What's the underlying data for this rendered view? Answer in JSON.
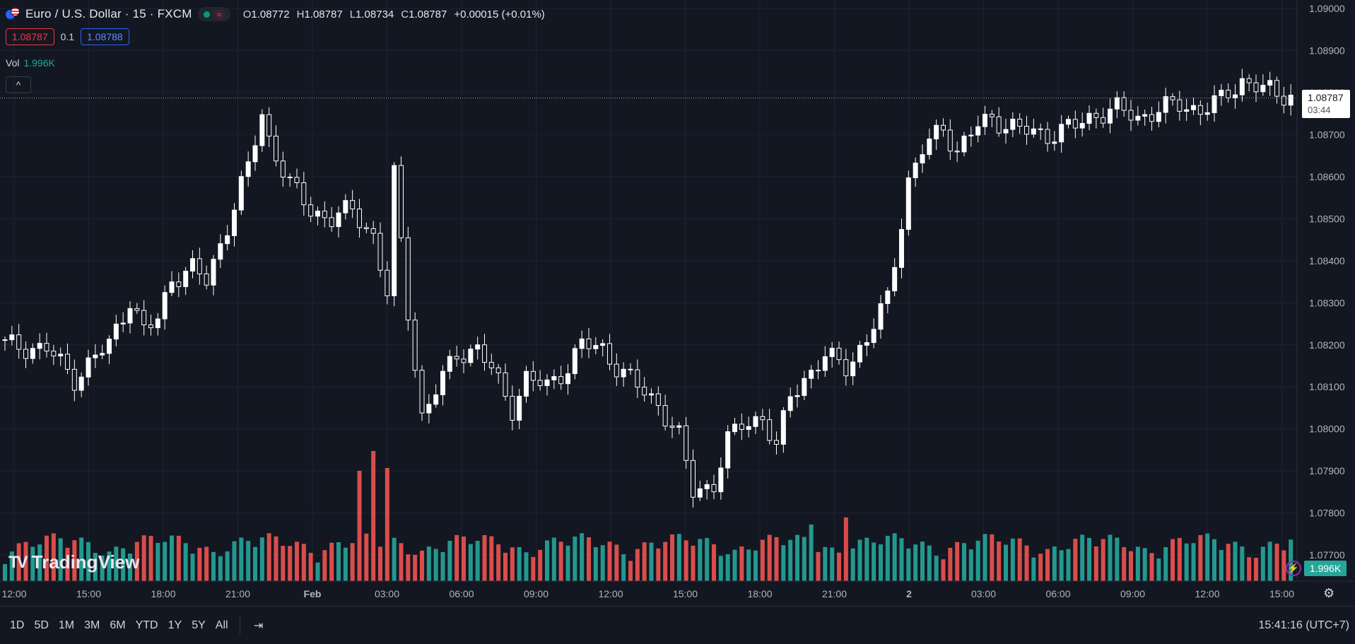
{
  "header": {
    "symbol": "Euro / U.S. Dollar · 15 · FXCM",
    "ohlc": {
      "o_label": "O",
      "o": "1.08772",
      "h_label": "H",
      "h": "1.08787",
      "l_label": "L",
      "l": "1.08734",
      "c_label": "C",
      "c": "1.08787",
      "change": "+0.00015 (+0.01%)"
    },
    "sell_price": "1.08787",
    "spread": "0.1",
    "buy_price": "1.08788",
    "vol_label": "Vol",
    "vol_value": "1.996K"
  },
  "price_tag": {
    "price": "1.08787",
    "countdown": "03:44"
  },
  "volume_tag": "1.996K",
  "logo_text": "TradingView",
  "ranges": [
    "1D",
    "5D",
    "1M",
    "3M",
    "6M",
    "YTD",
    "1Y",
    "5Y",
    "All"
  ],
  "clock": "15:41:16 (UTC+7)",
  "colors": {
    "bg": "#131722",
    "up": "#ffffff",
    "down": "#ffffff",
    "vol_up": "#26a69a",
    "vol_down": "#ef5350",
    "grid": "#1f2331"
  },
  "chart_data": {
    "type": "candlestick",
    "symbol": "Euro / U.S. Dollar",
    "interval": "15",
    "ylim": [
      1.0768,
      1.09
    ],
    "y_ticks": [
      "1.09000",
      "1.08900",
      "1.08800",
      "1.08700",
      "1.08600",
      "1.08500",
      "1.08400",
      "1.08300",
      "1.08200",
      "1.08100",
      "1.08000",
      "1.07900",
      "1.07800",
      "1.07700"
    ],
    "x_ticks": [
      "12:00",
      "15:00",
      "18:00",
      "21:00",
      "Feb",
      "03:00",
      "06:00",
      "09:00",
      "12:00",
      "15:00",
      "18:00",
      "21:00",
      "2",
      "03:00",
      "06:00",
      "09:00",
      "12:00",
      "15:00"
    ],
    "current_price": 1.08787,
    "close_path": [
      [
        0,
        1.082
      ],
      [
        6,
        1.0819
      ],
      [
        10,
        1.0812
      ],
      [
        13,
        1.0817
      ],
      [
        15,
        1.082
      ],
      [
        18,
        1.0831
      ],
      [
        20,
        1.0823
      ],
      [
        22,
        1.0826
      ],
      [
        24,
        1.0836
      ],
      [
        27,
        1.0838
      ],
      [
        29,
        1.0835
      ],
      [
        33,
        1.0853
      ],
      [
        35,
        1.0862
      ],
      [
        37,
        1.0875
      ],
      [
        38,
        1.0869
      ],
      [
        41,
        1.0858
      ],
      [
        44,
        1.0852
      ],
      [
        47,
        1.085
      ],
      [
        50,
        1.0852
      ],
      [
        53,
        1.0846
      ],
      [
        55,
        1.0832
      ],
      [
        56,
        1.086
      ],
      [
        58,
        1.0828
      ],
      [
        60,
        1.0803
      ],
      [
        63,
        1.0812
      ],
      [
        65,
        1.0818
      ],
      [
        68,
        1.0819
      ],
      [
        70,
        1.0814
      ],
      [
        73,
        1.0805
      ],
      [
        75,
        1.0812
      ],
      [
        78,
        1.081
      ],
      [
        81,
        1.0815
      ],
      [
        83,
        1.082
      ],
      [
        86,
        1.0819
      ],
      [
        88,
        1.0815
      ],
      [
        91,
        1.081
      ],
      [
        94,
        1.0806
      ],
      [
        97,
        1.0798
      ],
      [
        99,
        1.0785
      ],
      [
        102,
        1.0787
      ],
      [
        104,
        1.0797
      ],
      [
        106,
        1.0801
      ],
      [
        109,
        1.0803
      ],
      [
        111,
        1.0795
      ],
      [
        113,
        1.0808
      ],
      [
        115,
        1.0812
      ],
      [
        118,
        1.0817
      ],
      [
        121,
        1.0815
      ],
      [
        124,
        1.0821
      ],
      [
        127,
        1.0831
      ],
      [
        130,
        1.0859
      ],
      [
        132,
        1.0866
      ],
      [
        135,
        1.0872
      ],
      [
        137,
        1.0866
      ],
      [
        140,
        1.0872
      ],
      [
        142,
        1.0874
      ],
      [
        146,
        1.0871
      ],
      [
        150,
        1.087
      ],
      [
        154,
        1.0872
      ],
      [
        157,
        1.0875
      ],
      [
        160,
        1.0876
      ],
      [
        163,
        1.0874
      ],
      [
        166,
        1.0876
      ],
      [
        169,
        1.0877
      ],
      [
        172,
        1.0876
      ],
      [
        175,
        1.0878
      ],
      [
        178,
        1.0883
      ],
      [
        181,
        1.0881
      ],
      [
        183,
        1.0879
      ],
      [
        185,
        1.088
      ]
    ],
    "volume_ylim": [
      0,
      1
    ],
    "volume_spikes": [
      [
        51,
        0.78
      ],
      [
        53,
        0.92
      ],
      [
        55,
        0.8
      ],
      [
        121,
        0.45
      ],
      [
        116,
        0.4
      ]
    ]
  }
}
